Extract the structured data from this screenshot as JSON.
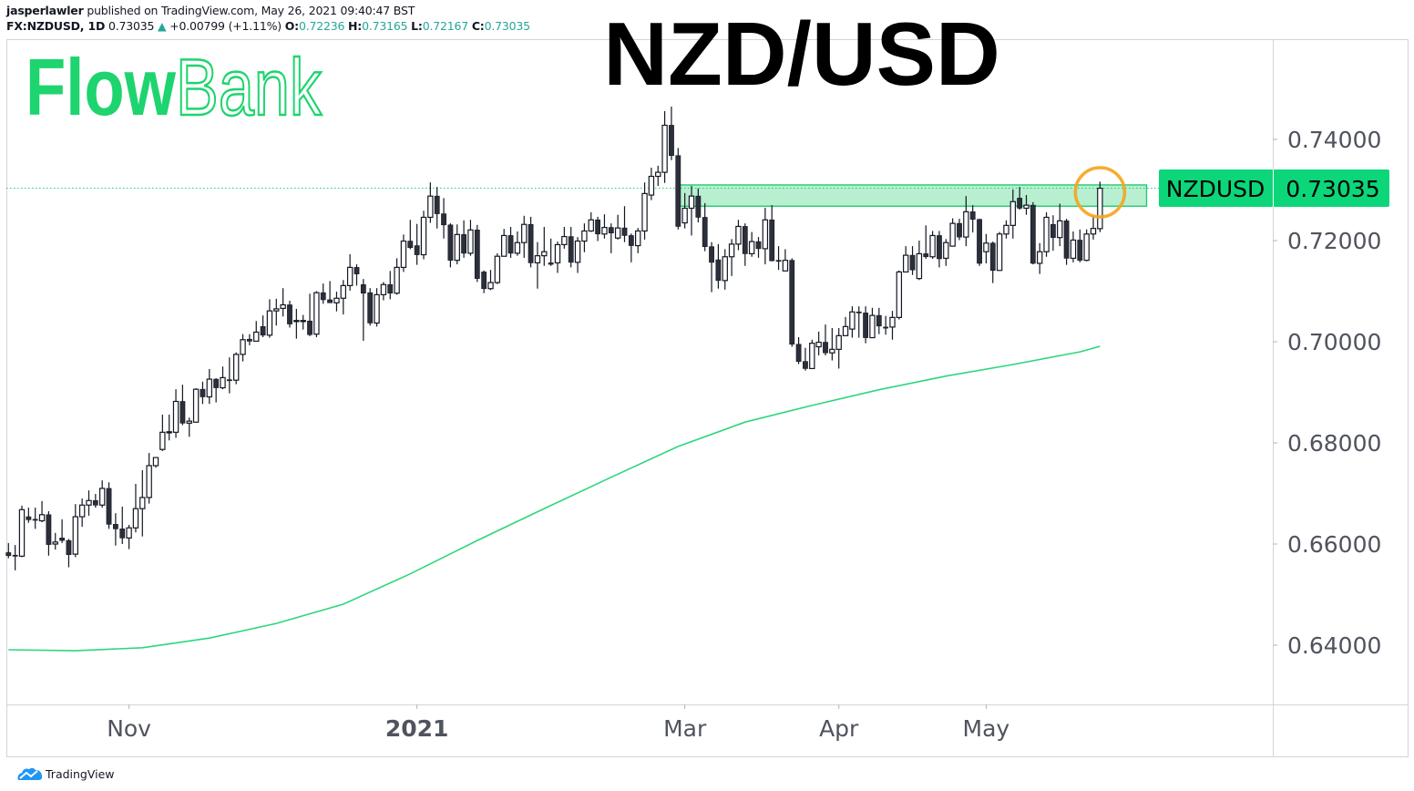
{
  "header": {
    "author": "jasperlawler",
    "published": "published on TradingView.com, May 26, 2021 09:40:47 BST",
    "symbol": "FX:NZDUSD, 1D",
    "last": "0.73035",
    "change": "+0.00799 (+1.11%)",
    "o_label": "O:",
    "o": "0.72236",
    "h_label": "H:",
    "h": "0.73165",
    "l_label": "L:",
    "l": "0.72167",
    "c_label": "C:",
    "c": "0.73035"
  },
  "title": "NZD/USD",
  "logo": {
    "part1": "Flow",
    "part2": "Bank",
    "color": "#1ed46f"
  },
  "footer": {
    "brand": "TradingView"
  },
  "colors": {
    "up_body": "#ffffff",
    "down_body": "#2b2f3a",
    "ma": "#2ed67c",
    "zone": "#22cc6e",
    "last_label": "#0cd679",
    "circle": "#f5a31c",
    "change_up": "#26a69a"
  },
  "chart_data": {
    "type": "candlestick",
    "title": "NZD/USD",
    "symbol_label": "NZDUSD",
    "last_price": 0.73035,
    "last_price_label": "0.73035",
    "ylim": [
      0.6225,
      0.7566
    ],
    "y_ticks": [
      {
        "value": 0.74,
        "label": "0.74000"
      },
      {
        "value": 0.72,
        "label": "0.72000"
      },
      {
        "value": 0.7,
        "label": "0.70000"
      },
      {
        "value": 0.68,
        "label": "0.68000"
      },
      {
        "value": 0.66,
        "label": "0.66000"
      },
      {
        "value": 0.64,
        "label": "0.64000"
      }
    ],
    "x_ticks": [
      {
        "label": "Nov",
        "bold": false
      },
      {
        "label": "2021",
        "bold": true
      },
      {
        "label": "Mar",
        "bold": false
      },
      {
        "label": "Apr",
        "bold": false
      },
      {
        "label": "May",
        "bold": false
      }
    ],
    "grid": false,
    "resistance_zone": {
      "top": 0.731,
      "bottom": 0.7268
    },
    "moving_average": [
      0.6391,
      0.6389,
      0.6395,
      0.6414,
      0.6443,
      0.6481,
      0.6541,
      0.6607,
      0.667,
      0.6732,
      0.6793,
      0.6841,
      0.6874,
      0.6905,
      0.6932,
      0.6955,
      0.698,
      0.6991
    ],
    "candles_ohlc": [
      [
        0.6583,
        0.6602,
        0.6572,
        0.6577
      ],
      [
        0.6578,
        0.6598,
        0.6548,
        0.6577
      ],
      [
        0.6576,
        0.6676,
        0.6574,
        0.6668
      ],
      [
        0.6654,
        0.6672,
        0.6642,
        0.6648
      ],
      [
        0.6649,
        0.6672,
        0.663,
        0.6647
      ],
      [
        0.6646,
        0.6685,
        0.6643,
        0.6658
      ],
      [
        0.6658,
        0.6665,
        0.6577,
        0.6599
      ],
      [
        0.66,
        0.6622,
        0.6589,
        0.6604
      ],
      [
        0.6612,
        0.6649,
        0.6602,
        0.6607
      ],
      [
        0.6607,
        0.661,
        0.6554,
        0.6579
      ],
      [
        0.658,
        0.6679,
        0.6574,
        0.6654
      ],
      [
        0.6654,
        0.669,
        0.6634,
        0.6677
      ],
      [
        0.6677,
        0.6706,
        0.6656,
        0.6686
      ],
      [
        0.6686,
        0.6699,
        0.6672,
        0.6677
      ],
      [
        0.6677,
        0.6726,
        0.6672,
        0.671
      ],
      [
        0.671,
        0.6722,
        0.663,
        0.6639
      ],
      [
        0.6639,
        0.6661,
        0.6597,
        0.663
      ],
      [
        0.663,
        0.6674,
        0.66,
        0.6612
      ],
      [
        0.6612,
        0.6638,
        0.659,
        0.6632
      ],
      [
        0.6632,
        0.6719,
        0.6623,
        0.667
      ],
      [
        0.667,
        0.6746,
        0.6615,
        0.6692
      ],
      [
        0.6692,
        0.678,
        0.668,
        0.6755
      ],
      [
        0.6755,
        0.6771,
        0.6751,
        0.6771
      ],
      [
        0.6787,
        0.6856,
        0.6784,
        0.6821
      ],
      [
        0.6821,
        0.6856,
        0.6805,
        0.6822
      ],
      [
        0.6821,
        0.6906,
        0.681,
        0.6882
      ],
      [
        0.6882,
        0.6915,
        0.6835,
        0.6839
      ],
      [
        0.6839,
        0.685,
        0.6812,
        0.6843
      ],
      [
        0.6841,
        0.6908,
        0.684,
        0.6906
      ],
      [
        0.6906,
        0.6921,
        0.6877,
        0.6891
      ],
      [
        0.6891,
        0.6946,
        0.6877,
        0.6926
      ],
      [
        0.6926,
        0.6928,
        0.688,
        0.6909
      ],
      [
        0.6909,
        0.6951,
        0.6906,
        0.6929
      ],
      [
        0.6925,
        0.6969,
        0.6898,
        0.6924
      ],
      [
        0.6924,
        0.6979,
        0.6916,
        0.6975
      ],
      [
        0.6975,
        0.7015,
        0.6961,
        0.7004
      ],
      [
        0.7005,
        0.7015,
        0.6993,
        0.7001
      ],
      [
        0.7001,
        0.7041,
        0.7001,
        0.7019
      ],
      [
        0.703,
        0.7052,
        0.7009,
        0.7013
      ],
      [
        0.7013,
        0.7084,
        0.7008,
        0.7061
      ],
      [
        0.7061,
        0.7085,
        0.7032,
        0.7065
      ],
      [
        0.7066,
        0.7106,
        0.705,
        0.7073
      ],
      [
        0.7073,
        0.7081,
        0.7028,
        0.7035
      ],
      [
        0.7041,
        0.7065,
        0.7006,
        0.7042
      ],
      [
        0.7041,
        0.7053,
        0.7024,
        0.7042
      ],
      [
        0.7041,
        0.7095,
        0.7011,
        0.7014
      ],
      [
        0.7015,
        0.71,
        0.7009,
        0.7097
      ],
      [
        0.7097,
        0.7115,
        0.7075,
        0.7083
      ],
      [
        0.7083,
        0.712,
        0.7077,
        0.7077
      ],
      [
        0.7077,
        0.7099,
        0.706,
        0.7086
      ],
      [
        0.7086,
        0.7122,
        0.7054,
        0.7111
      ],
      [
        0.7111,
        0.7173,
        0.7101,
        0.7147
      ],
      [
        0.7147,
        0.7153,
        0.7111,
        0.7134
      ],
      [
        0.7113,
        0.7124,
        0.7002,
        0.7096
      ],
      [
        0.7097,
        0.7106,
        0.7032,
        0.7037
      ],
      [
        0.7037,
        0.7106,
        0.703,
        0.7093
      ],
      [
        0.7093,
        0.7118,
        0.7082,
        0.7113
      ],
      [
        0.7113,
        0.714,
        0.7084,
        0.7096
      ],
      [
        0.7096,
        0.7165,
        0.7093,
        0.7147
      ],
      [
        0.7147,
        0.7212,
        0.7138,
        0.7199
      ],
      [
        0.7199,
        0.7241,
        0.7183,
        0.7186
      ],
      [
        0.719,
        0.7233,
        0.7152,
        0.7172
      ],
      [
        0.7172,
        0.7259,
        0.7163,
        0.7246
      ],
      [
        0.7246,
        0.7315,
        0.7235,
        0.7288
      ],
      [
        0.7288,
        0.7306,
        0.7224,
        0.7253
      ],
      [
        0.7253,
        0.7284,
        0.7204,
        0.7231
      ],
      [
        0.7231,
        0.7234,
        0.7147,
        0.7161
      ],
      [
        0.7161,
        0.7232,
        0.7153,
        0.7212
      ],
      [
        0.7212,
        0.724,
        0.7166,
        0.7175
      ],
      [
        0.7175,
        0.7241,
        0.717,
        0.7221
      ],
      [
        0.7221,
        0.7231,
        0.7118,
        0.7125
      ],
      [
        0.7138,
        0.7141,
        0.7096,
        0.7105
      ],
      [
        0.7105,
        0.7142,
        0.7102,
        0.7117
      ],
      [
        0.7117,
        0.7175,
        0.7114,
        0.7169
      ],
      [
        0.7169,
        0.7223,
        0.7169,
        0.721
      ],
      [
        0.721,
        0.7227,
        0.7166,
        0.7175
      ],
      [
        0.7175,
        0.7218,
        0.717,
        0.7196
      ],
      [
        0.7196,
        0.7249,
        0.7166,
        0.7232
      ],
      [
        0.7232,
        0.7247,
        0.7147,
        0.7156
      ],
      [
        0.7156,
        0.7197,
        0.7105,
        0.717
      ],
      [
        0.717,
        0.7227,
        0.715,
        0.7178
      ],
      [
        0.7156,
        0.7204,
        0.715,
        0.7153
      ],
      [
        0.7156,
        0.7198,
        0.7136,
        0.7192
      ],
      [
        0.7192,
        0.7227,
        0.7184,
        0.7208
      ],
      [
        0.7208,
        0.7227,
        0.7147,
        0.7157
      ],
      [
        0.7157,
        0.7207,
        0.7136,
        0.7199
      ],
      [
        0.7199,
        0.7234,
        0.7177,
        0.7219
      ],
      [
        0.7219,
        0.7256,
        0.7217,
        0.7241
      ],
      [
        0.7241,
        0.7247,
        0.7199,
        0.7213
      ],
      [
        0.7213,
        0.7252,
        0.7204,
        0.7226
      ],
      [
        0.7226,
        0.7234,
        0.7175,
        0.7215
      ],
      [
        0.7205,
        0.7251,
        0.7202,
        0.7225
      ],
      [
        0.7225,
        0.7268,
        0.7197,
        0.721
      ],
      [
        0.721,
        0.7214,
        0.7157,
        0.719
      ],
      [
        0.719,
        0.7225,
        0.7175,
        0.7219
      ],
      [
        0.7219,
        0.7315,
        0.7202,
        0.7293
      ],
      [
        0.729,
        0.7344,
        0.728,
        0.7327
      ],
      [
        0.7327,
        0.7348,
        0.7308,
        0.7335
      ],
      [
        0.7335,
        0.7456,
        0.7314,
        0.7428
      ],
      [
        0.7428,
        0.7465,
        0.7359,
        0.7368
      ],
      [
        0.7368,
        0.7383,
        0.7222,
        0.7228
      ],
      [
        0.7235,
        0.7294,
        0.7224,
        0.7264
      ],
      [
        0.7264,
        0.7308,
        0.721,
        0.7288
      ],
      [
        0.7288,
        0.7303,
        0.7236,
        0.7246
      ],
      [
        0.7246,
        0.7274,
        0.7179,
        0.7188
      ],
      [
        0.7188,
        0.7197,
        0.7098,
        0.7157
      ],
      [
        0.7162,
        0.7193,
        0.7105,
        0.7121
      ],
      [
        0.7121,
        0.7183,
        0.7103,
        0.7168
      ],
      [
        0.7168,
        0.7203,
        0.713,
        0.7193
      ],
      [
        0.7193,
        0.7241,
        0.7181,
        0.7228
      ],
      [
        0.7228,
        0.7234,
        0.715,
        0.7174
      ],
      [
        0.7174,
        0.7217,
        0.7168,
        0.7198
      ],
      [
        0.7198,
        0.7207,
        0.7166,
        0.7184
      ],
      [
        0.7184,
        0.7265,
        0.7153,
        0.7241
      ],
      [
        0.7241,
        0.727,
        0.7159,
        0.716
      ],
      [
        0.7161,
        0.7189,
        0.7142,
        0.716
      ],
      [
        0.714,
        0.7183,
        0.714,
        0.7161
      ],
      [
        0.7161,
        0.7165,
        0.699,
        0.6995
      ],
      [
        0.6995,
        0.7009,
        0.6956,
        0.6961
      ],
      [
        0.6961,
        0.6988,
        0.6943,
        0.6947
      ],
      [
        0.6947,
        0.7004,
        0.6947,
        0.6997
      ],
      [
        0.699,
        0.702,
        0.6973,
        0.6999
      ],
      [
        0.6999,
        0.7034,
        0.6973,
        0.6978
      ],
      [
        0.6978,
        0.7027,
        0.6963,
        0.6985
      ],
      [
        0.6985,
        0.7027,
        0.6947,
        0.7012
      ],
      [
        0.7012,
        0.7049,
        0.7012,
        0.703
      ],
      [
        0.7025,
        0.707,
        0.7008,
        0.7059
      ],
      [
        0.7059,
        0.707,
        0.7008,
        0.7057
      ],
      [
        0.7057,
        0.707,
        0.6997,
        0.7008
      ],
      [
        0.7008,
        0.7067,
        0.7008,
        0.7052
      ],
      [
        0.7052,
        0.7067,
        0.7015,
        0.7031
      ],
      [
        0.7029,
        0.7051,
        0.7014,
        0.7028
      ],
      [
        0.7029,
        0.7061,
        0.7004,
        0.7048
      ],
      [
        0.7048,
        0.7141,
        0.7044,
        0.7138
      ],
      [
        0.7138,
        0.7189,
        0.7138,
        0.7171
      ],
      [
        0.7171,
        0.7189,
        0.7132,
        0.7142
      ],
      [
        0.7125,
        0.72,
        0.7122,
        0.7174
      ],
      [
        0.7174,
        0.723,
        0.7164,
        0.7168
      ],
      [
        0.7168,
        0.7219,
        0.7164,
        0.721
      ],
      [
        0.721,
        0.7219,
        0.7147,
        0.7164
      ],
      [
        0.7165,
        0.7203,
        0.715,
        0.7196
      ],
      [
        0.7189,
        0.7244,
        0.7189,
        0.7234
      ],
      [
        0.7234,
        0.7243,
        0.7201,
        0.7207
      ],
      [
        0.7207,
        0.7288,
        0.7189,
        0.7257
      ],
      [
        0.7257,
        0.727,
        0.7216,
        0.7242
      ],
      [
        0.7242,
        0.7243,
        0.715,
        0.7155
      ],
      [
        0.7178,
        0.7213,
        0.7155,
        0.7195
      ],
      [
        0.7195,
        0.7198,
        0.7116,
        0.7141
      ],
      [
        0.7141,
        0.7217,
        0.7141,
        0.7213
      ],
      [
        0.7213,
        0.724,
        0.7204,
        0.723
      ],
      [
        0.723,
        0.7301,
        0.7204,
        0.7277
      ],
      [
        0.7284,
        0.7306,
        0.7261,
        0.7264
      ],
      [
        0.7264,
        0.729,
        0.7251,
        0.727
      ],
      [
        0.727,
        0.7276,
        0.7153,
        0.7155
      ],
      [
        0.7155,
        0.7195,
        0.7134,
        0.7178
      ],
      [
        0.7178,
        0.7256,
        0.7168,
        0.7246
      ],
      [
        0.7232,
        0.725,
        0.718,
        0.7206
      ],
      [
        0.7206,
        0.7273,
        0.7189,
        0.7239
      ],
      [
        0.7239,
        0.7243,
        0.7152,
        0.7165
      ],
      [
        0.7165,
        0.7218,
        0.7157,
        0.7201
      ],
      [
        0.7201,
        0.7222,
        0.7157,
        0.7161
      ],
      [
        0.7161,
        0.7222,
        0.7159,
        0.7213
      ],
      [
        0.7213,
        0.7249,
        0.7202,
        0.7224
      ],
      [
        0.72236,
        0.73165,
        0.72167,
        0.73035
      ]
    ]
  }
}
